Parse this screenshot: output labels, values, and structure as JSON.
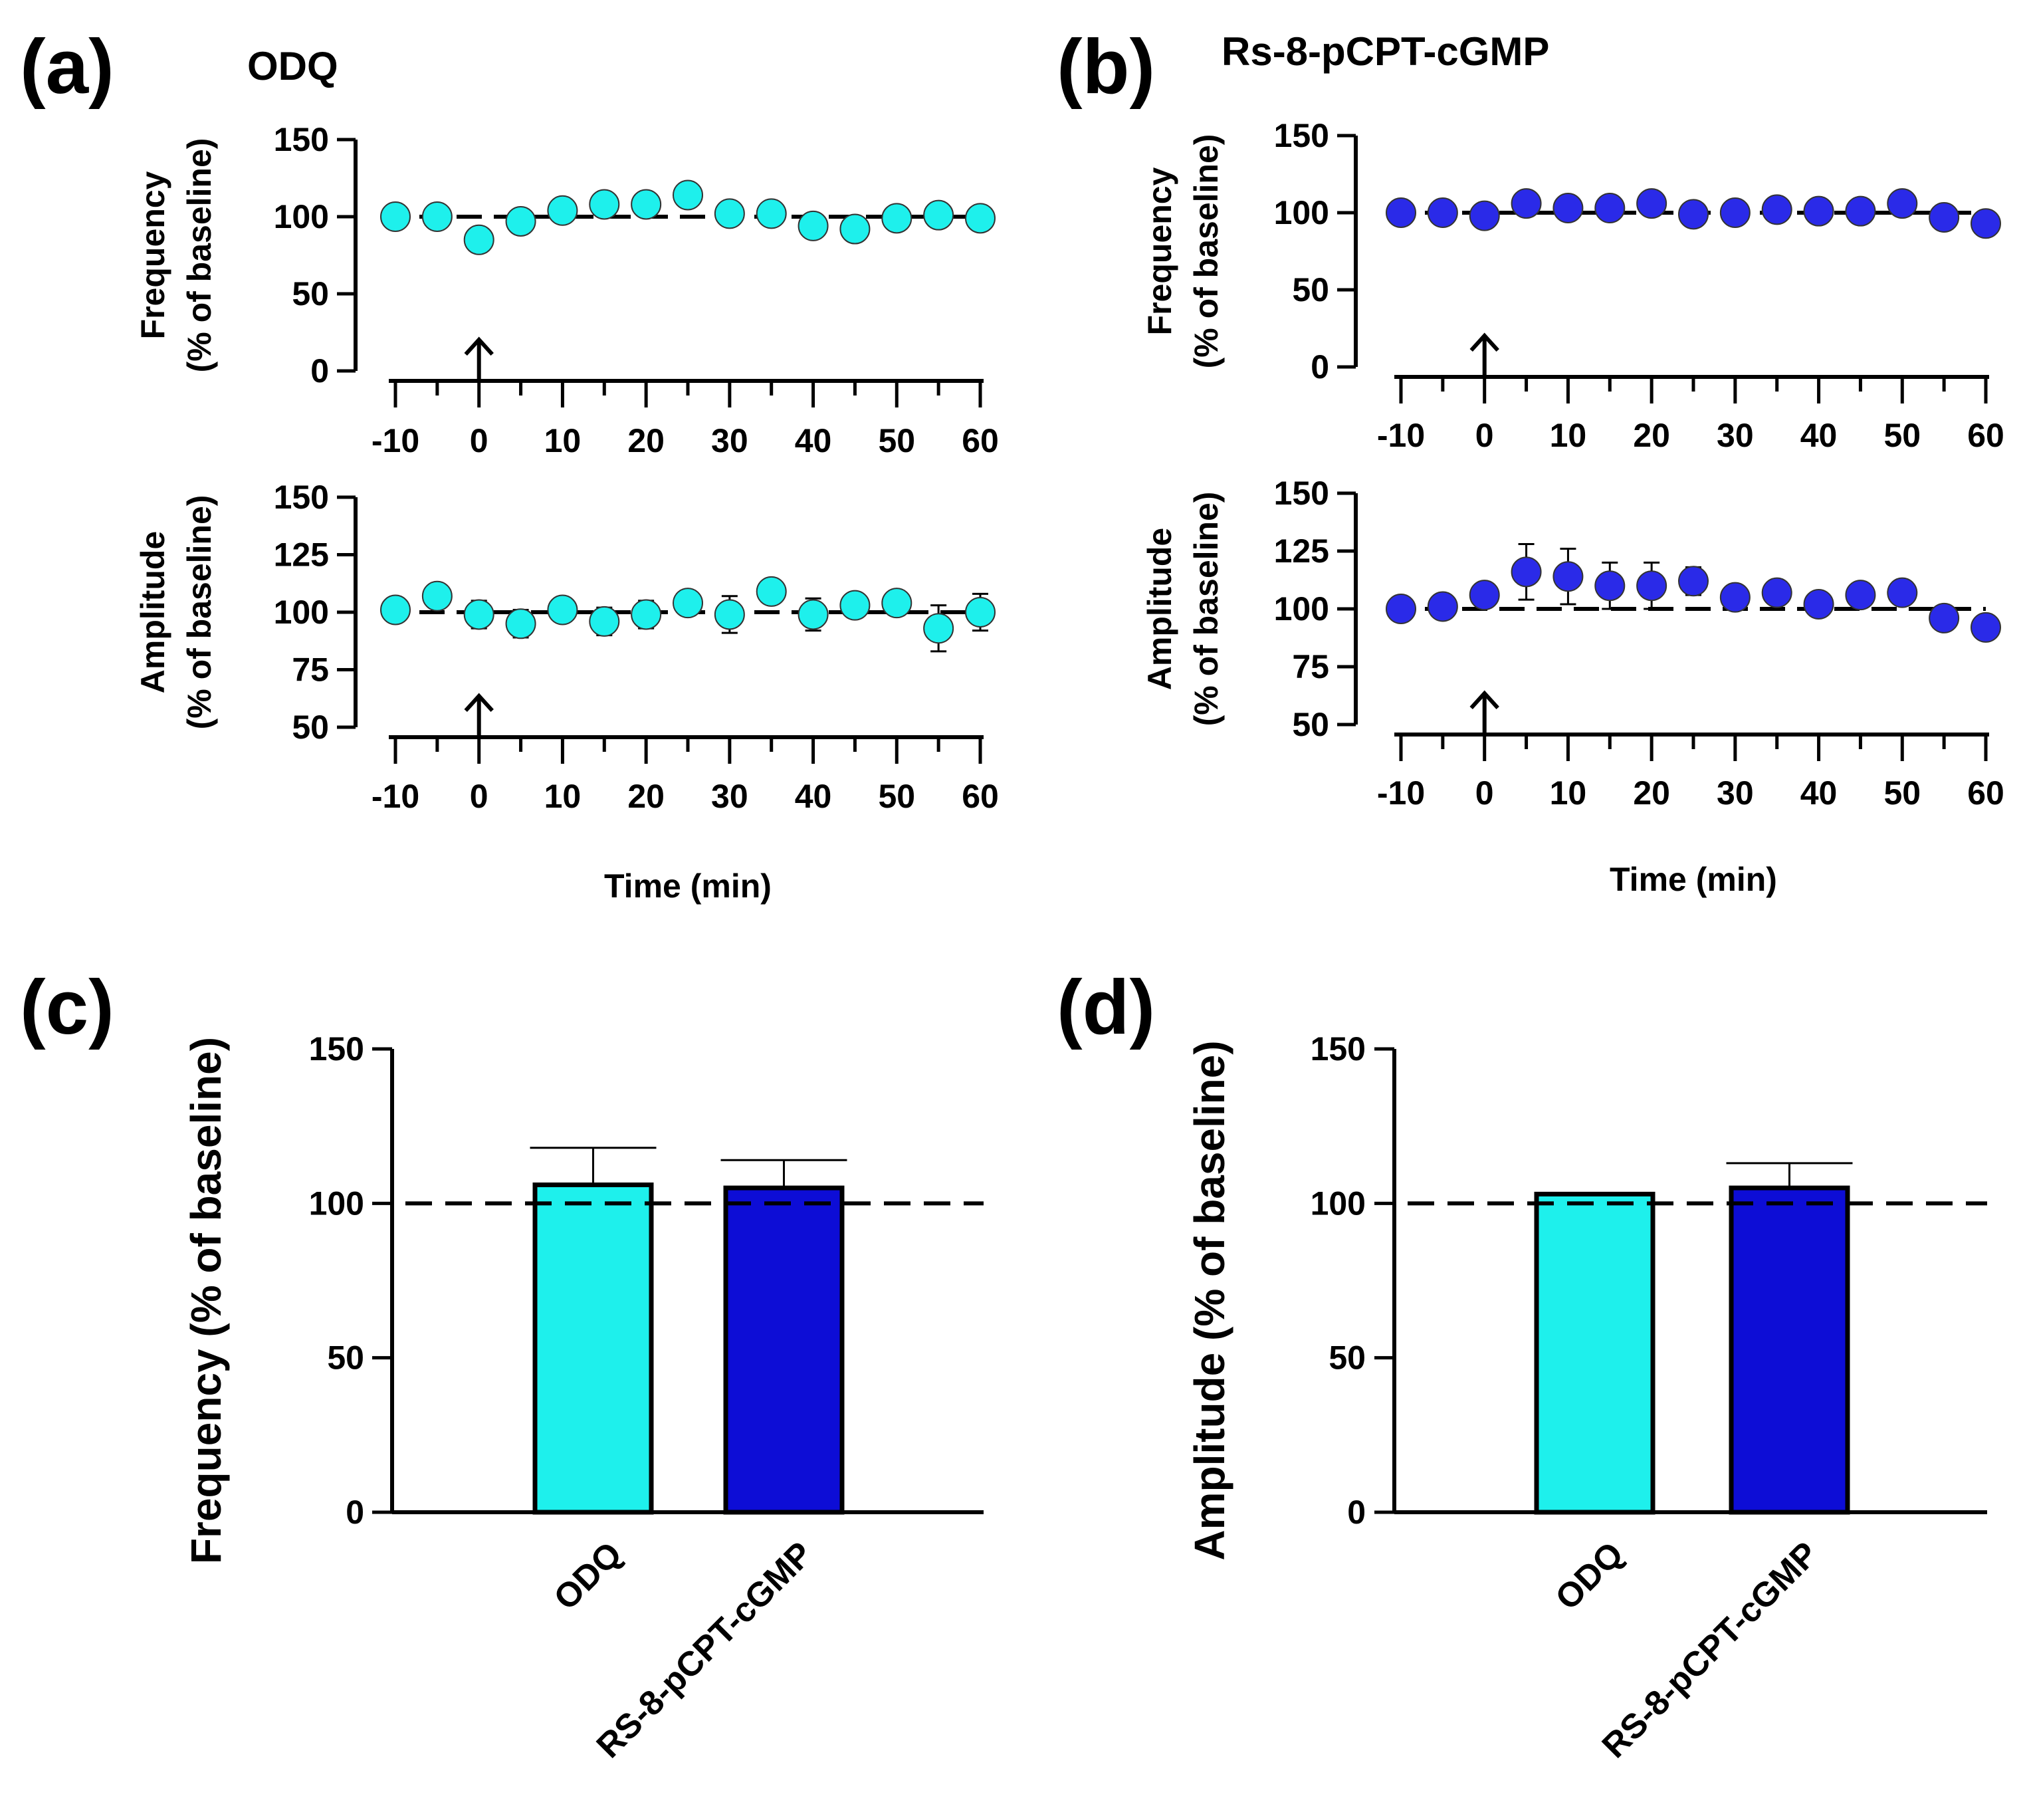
{
  "colors": {
    "cyan": "#1ef0ec",
    "blue": "#2a2ae8",
    "blue_bar": "#0d0dd6",
    "axis": "#000000"
  },
  "chart_data": [
    {
      "id": "a_freq",
      "panel_label": "(a)",
      "title": "ODQ",
      "type": "scatter",
      "color": "cyan",
      "xlabel": "",
      "ylabel_line1": "Frequency",
      "ylabel_line2": "(% of baseline)",
      "xlim": [
        -10,
        60
      ],
      "ylim": [
        0,
        150
      ],
      "xticks": [
        -10,
        0,
        10,
        20,
        30,
        40,
        50,
        60
      ],
      "yticks": [
        0,
        50,
        100,
        150
      ],
      "reference_line": 100,
      "arrow_at": 0,
      "x": [
        -10,
        -5,
        0,
        5,
        10,
        15,
        20,
        25,
        30,
        35,
        40,
        45,
        50,
        55,
        60
      ],
      "y": [
        100,
        100,
        85,
        97,
        104,
        108,
        108,
        114,
        102,
        102,
        94,
        92,
        99,
        101,
        99
      ],
      "err": [
        4,
        4,
        5,
        4,
        4,
        5,
        5,
        6,
        4,
        4,
        4,
        5,
        7,
        4,
        4
      ]
    },
    {
      "id": "a_amp",
      "panel_label": "",
      "title": "",
      "type": "scatter",
      "color": "cyan",
      "xlabel": "Time (min)",
      "ylabel_line1": "Amplitude",
      "ylabel_line2": "(% of baseline)",
      "xlim": [
        -10,
        60
      ],
      "ylim": [
        50,
        150
      ],
      "xticks": [
        -10,
        0,
        10,
        20,
        30,
        40,
        50,
        60
      ],
      "yticks": [
        50,
        75,
        100,
        125,
        150
      ],
      "reference_line": 100,
      "arrow_at": 0,
      "x": [
        -10,
        -5,
        0,
        5,
        10,
        15,
        20,
        25,
        30,
        35,
        40,
        45,
        50,
        55,
        60
      ],
      "y": [
        101,
        107,
        99,
        95,
        101,
        96,
        99,
        104,
        99,
        109,
        99,
        103,
        104,
        93,
        100
      ],
      "err": [
        3,
        3,
        6,
        6,
        4,
        6,
        6,
        4,
        8,
        4,
        7,
        4,
        5,
        10,
        8
      ]
    },
    {
      "id": "b_freq",
      "panel_label": "(b)",
      "title": "Rs-8-pCPT-cGMP",
      "type": "scatter",
      "color": "blue",
      "xlabel": "",
      "ylabel_line1": "Frequency",
      "ylabel_line2": "(% of baseline)",
      "xlim": [
        -10,
        60
      ],
      "ylim": [
        0,
        150
      ],
      "xticks": [
        -10,
        0,
        10,
        20,
        30,
        40,
        50,
        60
      ],
      "yticks": [
        0,
        50,
        100,
        150
      ],
      "reference_line": 100,
      "arrow_at": 0,
      "x": [
        -10,
        -5,
        0,
        5,
        10,
        15,
        20,
        25,
        30,
        35,
        40,
        45,
        50,
        55,
        60
      ],
      "y": [
        100,
        100,
        98,
        106,
        103,
        103,
        106,
        99,
        100,
        102,
        101,
        101,
        106,
        97,
        93
      ],
      "err": [
        3,
        3,
        4,
        5,
        4,
        4,
        4,
        4,
        3,
        4,
        4,
        3,
        5,
        4,
        4
      ]
    },
    {
      "id": "b_amp",
      "panel_label": "",
      "title": "",
      "type": "scatter",
      "color": "blue",
      "xlabel": "Time (min)",
      "ylabel_line1": "Amplitude",
      "ylabel_line2": "(% of baseline)",
      "xlim": [
        -10,
        60
      ],
      "ylim": [
        50,
        150
      ],
      "xticks": [
        -10,
        0,
        10,
        20,
        30,
        40,
        50,
        60
      ],
      "yticks": [
        50,
        75,
        100,
        125,
        150
      ],
      "reference_line": 100,
      "arrow_at": 0,
      "x": [
        -10,
        -5,
        0,
        5,
        10,
        15,
        20,
        25,
        30,
        35,
        40,
        45,
        50,
        55,
        60
      ],
      "y": [
        100,
        101,
        106,
        116,
        114,
        110,
        110,
        112,
        105,
        107,
        102,
        106,
        107,
        96,
        92
      ],
      "err": [
        3,
        3,
        4,
        12,
        12,
        10,
        10,
        6,
        4,
        4,
        4,
        4,
        5,
        5,
        4
      ]
    },
    {
      "id": "c_bar",
      "panel_label": "(c)",
      "title": "",
      "type": "bar",
      "ylabel": "Frequency (% of baseline)",
      "ylim": [
        0,
        150
      ],
      "yticks": [
        0,
        50,
        100,
        150
      ],
      "reference_line": 100,
      "categories": [
        "ODQ",
        "RS-8-pCPT-cGMP"
      ],
      "values": [
        106,
        105
      ],
      "err": [
        12,
        9
      ],
      "bar_colors": [
        "cyan",
        "blue_bar"
      ]
    },
    {
      "id": "d_bar",
      "panel_label": "(d)",
      "title": "",
      "type": "bar",
      "ylabel": "Amplitude (% of baseline)",
      "ylim": [
        0,
        150
      ],
      "yticks": [
        0,
        50,
        100,
        150
      ],
      "reference_line": 100,
      "categories": [
        "ODQ",
        "RS-8-pCPT-cGMP"
      ],
      "values": [
        103,
        105
      ],
      "err": [
        0,
        8
      ],
      "bar_colors": [
        "cyan",
        "blue_bar"
      ]
    }
  ]
}
